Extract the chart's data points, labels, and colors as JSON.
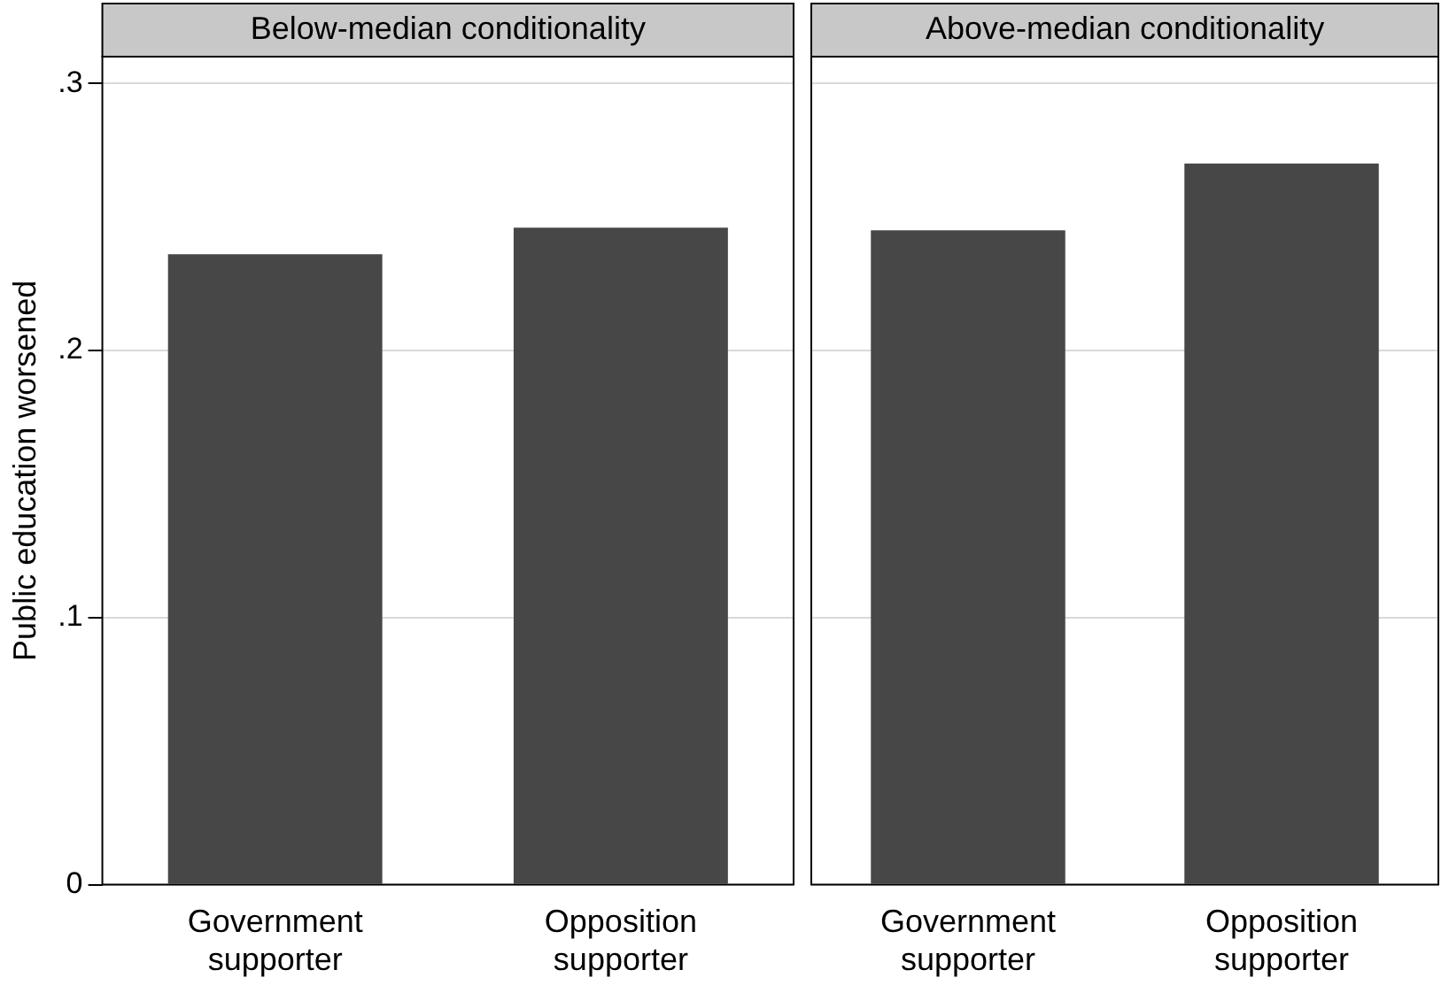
{
  "chart_data": [
    {
      "type": "bar",
      "title": "Below-median conditionality",
      "ylabel": "Public education worsened",
      "categories": [
        "Government supporter",
        "Opposition supporter"
      ],
      "values": [
        0.236,
        0.246
      ],
      "color": "#474747",
      "ylim": [
        0,
        0.31
      ],
      "yticks": [
        0,
        {
          "value": 0.1,
          "label": ".1"
        },
        {
          "value": 0.2,
          "label": ".2"
        },
        {
          "value": 0.3,
          "label": ".3"
        }
      ],
      "grid": "y",
      "legend": false
    },
    {
      "type": "bar",
      "title": "Above-median conditionality",
      "categories": [
        "Government supporter",
        "Opposition supporter"
      ],
      "values": [
        0.245,
        0.27
      ],
      "color": "#474747",
      "ylim": [
        0,
        0.31
      ],
      "yticks": [
        0,
        0.1,
        0.2,
        0.3
      ],
      "grid": "y",
      "legend": false,
      "tick_labels": "x"
    }
  ]
}
